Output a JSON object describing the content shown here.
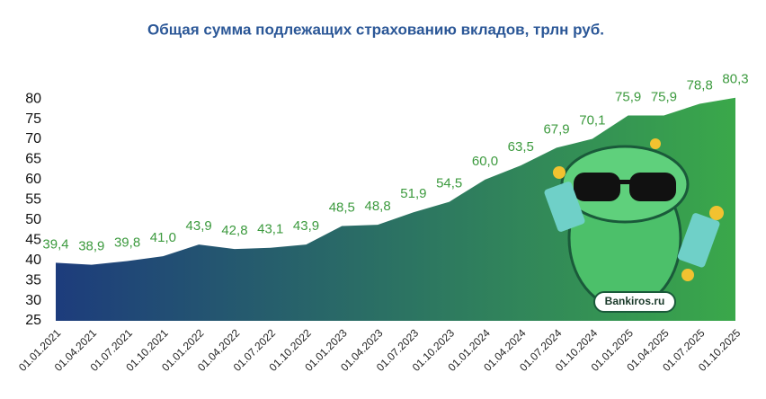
{
  "chart_data": {
    "type": "area",
    "title": "Общая сумма подлежащих страхованию вкладов, трлн руб.",
    "categories": [
      "01.01.2021",
      "01.04.2021",
      "01.07.2021",
      "01.10.2021",
      "01.01.2022",
      "01.04.2022",
      "01.07.2022",
      "01.10.2022",
      "01.01.2023",
      "01.04.2023",
      "01.07.2023",
      "01.10.2023",
      "01.01.2024",
      "01.04.2024",
      "01.07.2024",
      "01.10.2024",
      "01.01.2025",
      "01.04.2025",
      "01.07.2025",
      "01.10.2025"
    ],
    "values": [
      39.4,
      38.9,
      39.8,
      41.0,
      43.9,
      42.8,
      43.1,
      43.9,
      48.5,
      48.8,
      51.9,
      54.5,
      60.0,
      63.5,
      67.9,
      70.1,
      75.9,
      75.9,
      78.8,
      80.3
    ],
    "value_labels": [
      "39,4",
      "38,9",
      "39,8",
      "41,0",
      "43,9",
      "42,8",
      "43,1",
      "43,9",
      "48,5",
      "48,8",
      "51,9",
      "54,5",
      "60,0",
      "63,5",
      "67,9",
      "70,1",
      "75,9",
      "75,9",
      "78,8",
      "80,3"
    ],
    "colors": [
      "#1d3c7c",
      "#3aa84a"
    ],
    "ylim": [
      25,
      81
    ],
    "yticks": [
      25,
      30,
      35,
      40,
      45,
      50,
      55,
      60,
      65,
      70,
      75,
      80
    ],
    "grid": false,
    "watermark": "Bankiros.ru"
  }
}
